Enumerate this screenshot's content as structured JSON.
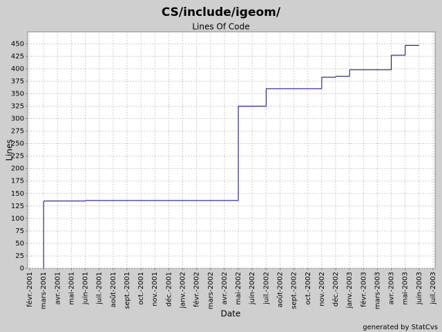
{
  "chart_data": {
    "type": "line",
    "step": "post",
    "title": "CS/include/igeom/",
    "subtitle": "Lines Of Code",
    "x_label": "Date",
    "y_label": "Lines",
    "footer": "generated by StatCvs",
    "x": [
      "2001-03",
      "2001-03",
      "2001-06",
      "2002-05",
      "2002-05",
      "2002-07",
      "2002-07",
      "2002-11",
      "2002-12",
      "2003-01",
      "2003-04",
      "2003-05",
      "2003-06"
    ],
    "series": [
      {
        "name": "Lines",
        "color": "#000080",
        "values": [
          0,
          135,
          136,
          205,
          325,
          350,
          360,
          383,
          385,
          398,
          427,
          447,
          447
        ]
      }
    ],
    "xlim": [
      "2001-02",
      "2003-07"
    ],
    "xticks": [
      {
        "value": "2001-02",
        "label": "févr.-2001"
      },
      {
        "value": "2001-03",
        "label": "mars-2001"
      },
      {
        "value": "2001-04",
        "label": "avr.-2001"
      },
      {
        "value": "2001-05",
        "label": "mai-2001"
      },
      {
        "value": "2001-06",
        "label": "juin-2001"
      },
      {
        "value": "2001-07",
        "label": "juil.-2001"
      },
      {
        "value": "2001-08",
        "label": "août-2001"
      },
      {
        "value": "2001-09",
        "label": "sept.-2001"
      },
      {
        "value": "2001-10",
        "label": "oct.-2001"
      },
      {
        "value": "2001-11",
        "label": "nov.-2001"
      },
      {
        "value": "2001-12",
        "label": "déc.-2001"
      },
      {
        "value": "2002-01",
        "label": "janv.-2002"
      },
      {
        "value": "2002-02",
        "label": "févr.-2002"
      },
      {
        "value": "2002-03",
        "label": "mars-2002"
      },
      {
        "value": "2002-04",
        "label": "avr.-2002"
      },
      {
        "value": "2002-05",
        "label": "mai-2002"
      },
      {
        "value": "2002-06",
        "label": "juin-2002"
      },
      {
        "value": "2002-07",
        "label": "juil.-2002"
      },
      {
        "value": "2002-08",
        "label": "août-2002"
      },
      {
        "value": "2002-09",
        "label": "sept.-2002"
      },
      {
        "value": "2002-10",
        "label": "oct.-2002"
      },
      {
        "value": "2002-11",
        "label": "nov.-2002"
      },
      {
        "value": "2002-12",
        "label": "déc.-2002"
      },
      {
        "value": "2003-01",
        "label": "janv.-2003"
      },
      {
        "value": "2003-02",
        "label": "févr.-2003"
      },
      {
        "value": "2003-03",
        "label": "mars-2003"
      },
      {
        "value": "2003-04",
        "label": "avr.-2003"
      },
      {
        "value": "2003-05",
        "label": "mai-2003"
      },
      {
        "value": "2003-06",
        "label": "juin-2003"
      },
      {
        "value": "2003-07",
        "label": "juil.-2003"
      }
    ],
    "ylim": [
      0,
      474
    ],
    "yticks": [
      0,
      25,
      50,
      75,
      100,
      125,
      150,
      175,
      200,
      225,
      250,
      275,
      300,
      325,
      350,
      375,
      400,
      425,
      450
    ],
    "grid": true
  }
}
